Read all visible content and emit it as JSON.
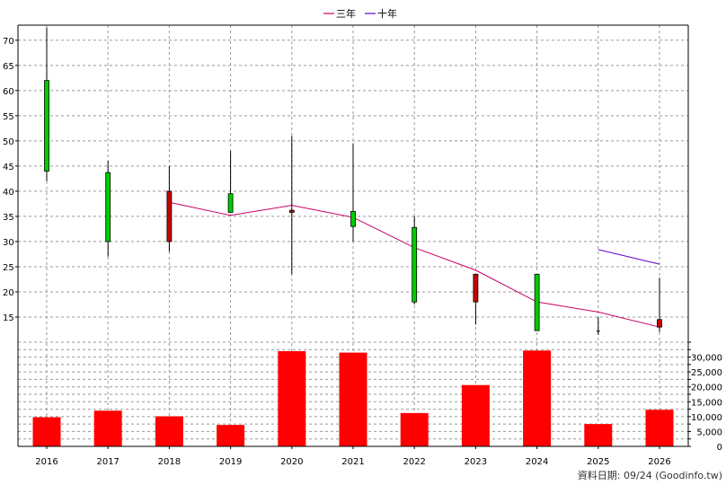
{
  "chart_data": {
    "type": "candlestick-bar",
    "years": [
      "2016",
      "2017",
      "2018",
      "2019",
      "2020",
      "2021",
      "2022",
      "2023",
      "2024",
      "2025",
      "2026"
    ],
    "price": {
      "ylim": [
        10,
        73
      ],
      "yticks": [
        15,
        20,
        25,
        30,
        35,
        40,
        45,
        50,
        55,
        60,
        65,
        70
      ],
      "candles": [
        {
          "year": "2016",
          "open": 44.0,
          "close": 62.0,
          "high": 72.5,
          "low": 42.0
        },
        {
          "year": "2017",
          "open": 30.0,
          "close": 43.7,
          "high": 46.0,
          "low": 27.0
        },
        {
          "year": "2018",
          "open": 40.0,
          "close": 30.0,
          "high": 45.0,
          "low": 28.0
        },
        {
          "year": "2019",
          "open": 35.8,
          "close": 39.5,
          "high": 48.0,
          "low": 35.8
        },
        {
          "year": "2020",
          "open": 36.2,
          "close": 35.8,
          "high": 51.0,
          "low": 23.5
        },
        {
          "year": "2021",
          "open": 33.0,
          "close": 36.0,
          "high": 49.5,
          "low": 30.0
        },
        {
          "year": "2022",
          "open": 18.0,
          "close": 32.8,
          "high": 35.0,
          "low": 17.5
        },
        {
          "year": "2023",
          "open": 23.5,
          "close": 18.0,
          "high": 23.5,
          "low": 13.5
        },
        {
          "year": "2024",
          "open": 12.3,
          "close": 23.5,
          "high": 23.5,
          "low": 12.3
        },
        {
          "year": "2025",
          "open": 12.2,
          "close": 12.0,
          "high": 15.0,
          "low": 11.5
        },
        {
          "year": "2026",
          "open": 14.5,
          "close": 13.0,
          "high": 22.8,
          "low": 12.0
        }
      ],
      "series": [
        {
          "name": "三年",
          "color": "#cc0066",
          "x": [
            "2018",
            "2019",
            "2020",
            "2021",
            "2022",
            "2023",
            "2024",
            "2025",
            "2026"
          ],
          "values": [
            37.8,
            35.2,
            37.2,
            34.8,
            28.8,
            24.3,
            18.0,
            16.0,
            13.0
          ]
        },
        {
          "name": "十年",
          "color": "#6600cc",
          "x": [
            "2025",
            "2026"
          ],
          "values": [
            28.4,
            25.5
          ]
        }
      ],
      "up_color": "#00cc00",
      "down_color": "#cc0000"
    },
    "volume": {
      "ylim": [
        0,
        35000
      ],
      "yticks": [
        0,
        5000,
        10000,
        15000,
        20000,
        25000,
        30000
      ],
      "ytick_labels": [
        "0",
        "5,000",
        "10,000",
        "15,000",
        "20,000",
        "25,000",
        "30,000"
      ],
      "values": [
        9800,
        12000,
        10100,
        7200,
        32000,
        31500,
        11200,
        20600,
        32200,
        7500,
        12300
      ],
      "color": "#ff0000"
    },
    "legend_position": "top-center",
    "grid": true
  },
  "source_text": "資料日期: 09/24 (Goodinfo.tw)"
}
